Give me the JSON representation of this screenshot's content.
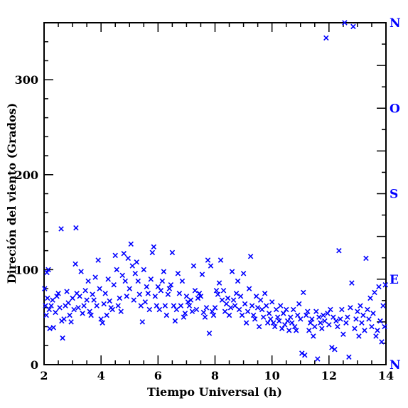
{
  "chart_data": {
    "type": "scatter",
    "title": "",
    "xlabel": "Tiempo Universal (h)",
    "ylabel": "Direción del viento (Grados)",
    "xlim": [
      2,
      14
    ],
    "ylim": [
      0,
      360
    ],
    "x_ticks": [
      2,
      4,
      6,
      8,
      10,
      12,
      14
    ],
    "y_ticks": [
      0,
      100,
      200,
      300
    ],
    "right_axis_labels": [
      {
        "label": "N",
        "value": 0
      },
      {
        "label": "E",
        "value": 90
      },
      {
        "label": "S",
        "value": 180
      },
      {
        "label": "O",
        "value": 270
      },
      {
        "label": "N",
        "value": 360
      }
    ],
    "marker": "x",
    "color": "#0000ff",
    "label_color": "#0000ff",
    "grid": false,
    "points": [
      [
        2.02,
        80
      ],
      [
        2.05,
        62
      ],
      [
        2.08,
        52
      ],
      [
        2.1,
        97
      ],
      [
        2.12,
        70
      ],
      [
        2.15,
        100
      ],
      [
        2.18,
        58
      ],
      [
        2.2,
        38
      ],
      [
        2.25,
        62
      ],
      [
        2.3,
        68
      ],
      [
        2.33,
        39
      ],
      [
        2.4,
        55
      ],
      [
        2.45,
        72
      ],
      [
        2.5,
        75
      ],
      [
        2.55,
        60
      ],
      [
        2.6,
        143
      ],
      [
        2.62,
        46
      ],
      [
        2.65,
        28
      ],
      [
        2.7,
        48
      ],
      [
        2.75,
        62
      ],
      [
        2.8,
        77
      ],
      [
        2.85,
        65
      ],
      [
        2.9,
        52
      ],
      [
        2.95,
        45
      ],
      [
        3.0,
        70
      ],
      [
        3.05,
        58
      ],
      [
        3.1,
        106
      ],
      [
        3.12,
        144
      ],
      [
        3.15,
        75
      ],
      [
        3.2,
        60
      ],
      [
        3.25,
        72
      ],
      [
        3.3,
        98
      ],
      [
        3.35,
        54
      ],
      [
        3.4,
        62
      ],
      [
        3.45,
        78
      ],
      [
        3.5,
        68
      ],
      [
        3.55,
        88
      ],
      [
        3.6,
        56
      ],
      [
        3.65,
        52
      ],
      [
        3.7,
        74
      ],
      [
        3.75,
        68
      ],
      [
        3.8,
        92
      ],
      [
        3.85,
        62
      ],
      [
        3.9,
        110
      ],
      [
        3.95,
        80
      ],
      [
        4.0,
        48
      ],
      [
        4.05,
        44
      ],
      [
        4.1,
        64
      ],
      [
        4.15,
        75
      ],
      [
        4.2,
        52
      ],
      [
        4.25,
        90
      ],
      [
        4.3,
        67
      ],
      [
        4.35,
        60
      ],
      [
        4.4,
        58
      ],
      [
        4.45,
        84
      ],
      [
        4.5,
        115
      ],
      [
        4.55,
        100
      ],
      [
        4.6,
        62
      ],
      [
        4.65,
        70
      ],
      [
        4.7,
        56
      ],
      [
        4.75,
        94
      ],
      [
        4.8,
        117
      ],
      [
        4.85,
        88
      ],
      [
        4.9,
        72
      ],
      [
        4.95,
        112
      ],
      [
        5.0,
        80
      ],
      [
        5.05,
        127
      ],
      [
        5.1,
        104
      ],
      [
        5.15,
        68
      ],
      [
        5.2,
        96
      ],
      [
        5.25,
        108
      ],
      [
        5.3,
        88
      ],
      [
        5.35,
        74
      ],
      [
        5.4,
        62
      ],
      [
        5.45,
        45
      ],
      [
        5.5,
        100
      ],
      [
        5.55,
        66
      ],
      [
        5.6,
        82
      ],
      [
        5.65,
        75
      ],
      [
        5.7,
        58
      ],
      [
        5.75,
        90
      ],
      [
        5.8,
        118
      ],
      [
        5.85,
        124
      ],
      [
        5.9,
        72
      ],
      [
        5.95,
        62
      ],
      [
        6.0,
        82
      ],
      [
        6.05,
        58
      ],
      [
        6.1,
        78
      ],
      [
        6.15,
        88
      ],
      [
        6.2,
        98
      ],
      [
        6.25,
        62
      ],
      [
        6.3,
        52
      ],
      [
        6.35,
        74
      ],
      [
        6.4,
        80
      ],
      [
        6.45,
        84
      ],
      [
        6.5,
        118
      ],
      [
        6.55,
        62
      ],
      [
        6.6,
        46
      ],
      [
        6.65,
        58
      ],
      [
        6.7,
        96
      ],
      [
        6.75,
        75
      ],
      [
        6.8,
        62
      ],
      [
        6.85,
        88
      ],
      [
        6.9,
        50
      ],
      [
        6.95,
        54
      ],
      [
        7.0,
        72
      ],
      [
        7.05,
        66
      ],
      [
        7.1,
        62
      ],
      [
        7.15,
        68
      ],
      [
        7.2,
        56
      ],
      [
        7.25,
        104
      ],
      [
        7.3,
        78
      ],
      [
        7.35,
        58
      ],
      [
        7.4,
        70
      ],
      [
        7.45,
        75
      ],
      [
        7.5,
        72
      ],
      [
        7.55,
        95
      ],
      [
        7.6,
        55
      ],
      [
        7.65,
        50
      ],
      [
        7.7,
        60
      ],
      [
        7.75,
        110
      ],
      [
        7.8,
        33
      ],
      [
        7.85,
        104
      ],
      [
        7.9,
        56
      ],
      [
        7.95,
        52
      ],
      [
        8.0,
        60
      ],
      [
        8.05,
        78
      ],
      [
        8.1,
        74
      ],
      [
        8.15,
        86
      ],
      [
        8.2,
        110
      ],
      [
        8.25,
        68
      ],
      [
        8.3,
        78
      ],
      [
        8.35,
        56
      ],
      [
        8.4,
        64
      ],
      [
        8.45,
        70
      ],
      [
        8.5,
        52
      ],
      [
        8.55,
        60
      ],
      [
        8.6,
        98
      ],
      [
        8.65,
        68
      ],
      [
        8.7,
        62
      ],
      [
        8.75,
        75
      ],
      [
        8.8,
        88
      ],
      [
        8.85,
        58
      ],
      [
        8.9,
        72
      ],
      [
        8.95,
        52
      ],
      [
        9.0,
        96
      ],
      [
        9.05,
        64
      ],
      [
        9.1,
        44
      ],
      [
        9.15,
        56
      ],
      [
        9.2,
        80
      ],
      [
        9.25,
        114
      ],
      [
        9.3,
        62
      ],
      [
        9.35,
        52
      ],
      [
        9.4,
        48
      ],
      [
        9.45,
        72
      ],
      [
        9.5,
        60
      ],
      [
        9.55,
        40
      ],
      [
        9.6,
        68
      ],
      [
        9.65,
        58
      ],
      [
        9.7,
        50
      ],
      [
        9.75,
        75
      ],
      [
        9.8,
        62
      ],
      [
        9.85,
        44
      ],
      [
        9.9,
        54
      ],
      [
        9.95,
        48
      ],
      [
        10.0,
        66
      ],
      [
        10.05,
        44
      ],
      [
        10.1,
        40
      ],
      [
        10.15,
        58
      ],
      [
        10.2,
        50
      ],
      [
        10.25,
        46
      ],
      [
        10.3,
        62
      ],
      [
        10.35,
        38
      ],
      [
        10.4,
        54
      ],
      [
        10.45,
        42
      ],
      [
        10.5,
        58
      ],
      [
        10.55,
        46
      ],
      [
        10.6,
        36
      ],
      [
        10.65,
        50
      ],
      [
        10.7,
        44
      ],
      [
        10.75,
        58
      ],
      [
        10.8,
        40
      ],
      [
        10.85,
        36
      ],
      [
        10.9,
        52
      ],
      [
        10.95,
        64
      ],
      [
        11.0,
        48
      ],
      [
        11.05,
        12
      ],
      [
        11.1,
        76
      ],
      [
        11.15,
        10
      ],
      [
        11.2,
        52
      ],
      [
        11.25,
        56
      ],
      [
        11.3,
        36
      ],
      [
        11.35,
        44
      ],
      [
        11.4,
        48
      ],
      [
        11.45,
        30
      ],
      [
        11.5,
        40
      ],
      [
        11.55,
        56
      ],
      [
        11.6,
        6
      ],
      [
        11.65,
        50
      ],
      [
        11.7,
        44
      ],
      [
        11.75,
        38
      ],
      [
        11.8,
        52
      ],
      [
        11.85,
        46
      ],
      [
        11.9,
        344
      ],
      [
        11.95,
        54
      ],
      [
        12.0,
        42
      ],
      [
        12.05,
        58
      ],
      [
        12.1,
        18
      ],
      [
        12.15,
        50
      ],
      [
        12.2,
        16
      ],
      [
        12.25,
        46
      ],
      [
        12.3,
        40
      ],
      [
        12.35,
        120
      ],
      [
        12.4,
        48
      ],
      [
        12.45,
        58
      ],
      [
        12.5,
        32
      ],
      [
        12.55,
        360
      ],
      [
        12.6,
        44
      ],
      [
        12.65,
        50
      ],
      [
        12.7,
        8
      ],
      [
        12.75,
        60
      ],
      [
        12.8,
        86
      ],
      [
        12.85,
        356
      ],
      [
        12.9,
        38
      ],
      [
        12.95,
        48
      ],
      [
        13.0,
        56
      ],
      [
        13.05,
        30
      ],
      [
        13.1,
        62
      ],
      [
        13.15,
        44
      ],
      [
        13.2,
        52
      ],
      [
        13.25,
        36
      ],
      [
        13.3,
        112
      ],
      [
        13.35,
        58
      ],
      [
        13.4,
        48
      ],
      [
        13.45,
        70
      ],
      [
        13.5,
        40
      ],
      [
        13.55,
        54
      ],
      [
        13.6,
        76
      ],
      [
        13.65,
        30
      ],
      [
        13.7,
        36
      ],
      [
        13.75,
        82
      ],
      [
        13.8,
        46
      ],
      [
        13.85,
        24
      ],
      [
        13.9,
        62
      ],
      [
        13.95,
        40
      ],
      [
        13.98,
        84
      ]
    ]
  }
}
